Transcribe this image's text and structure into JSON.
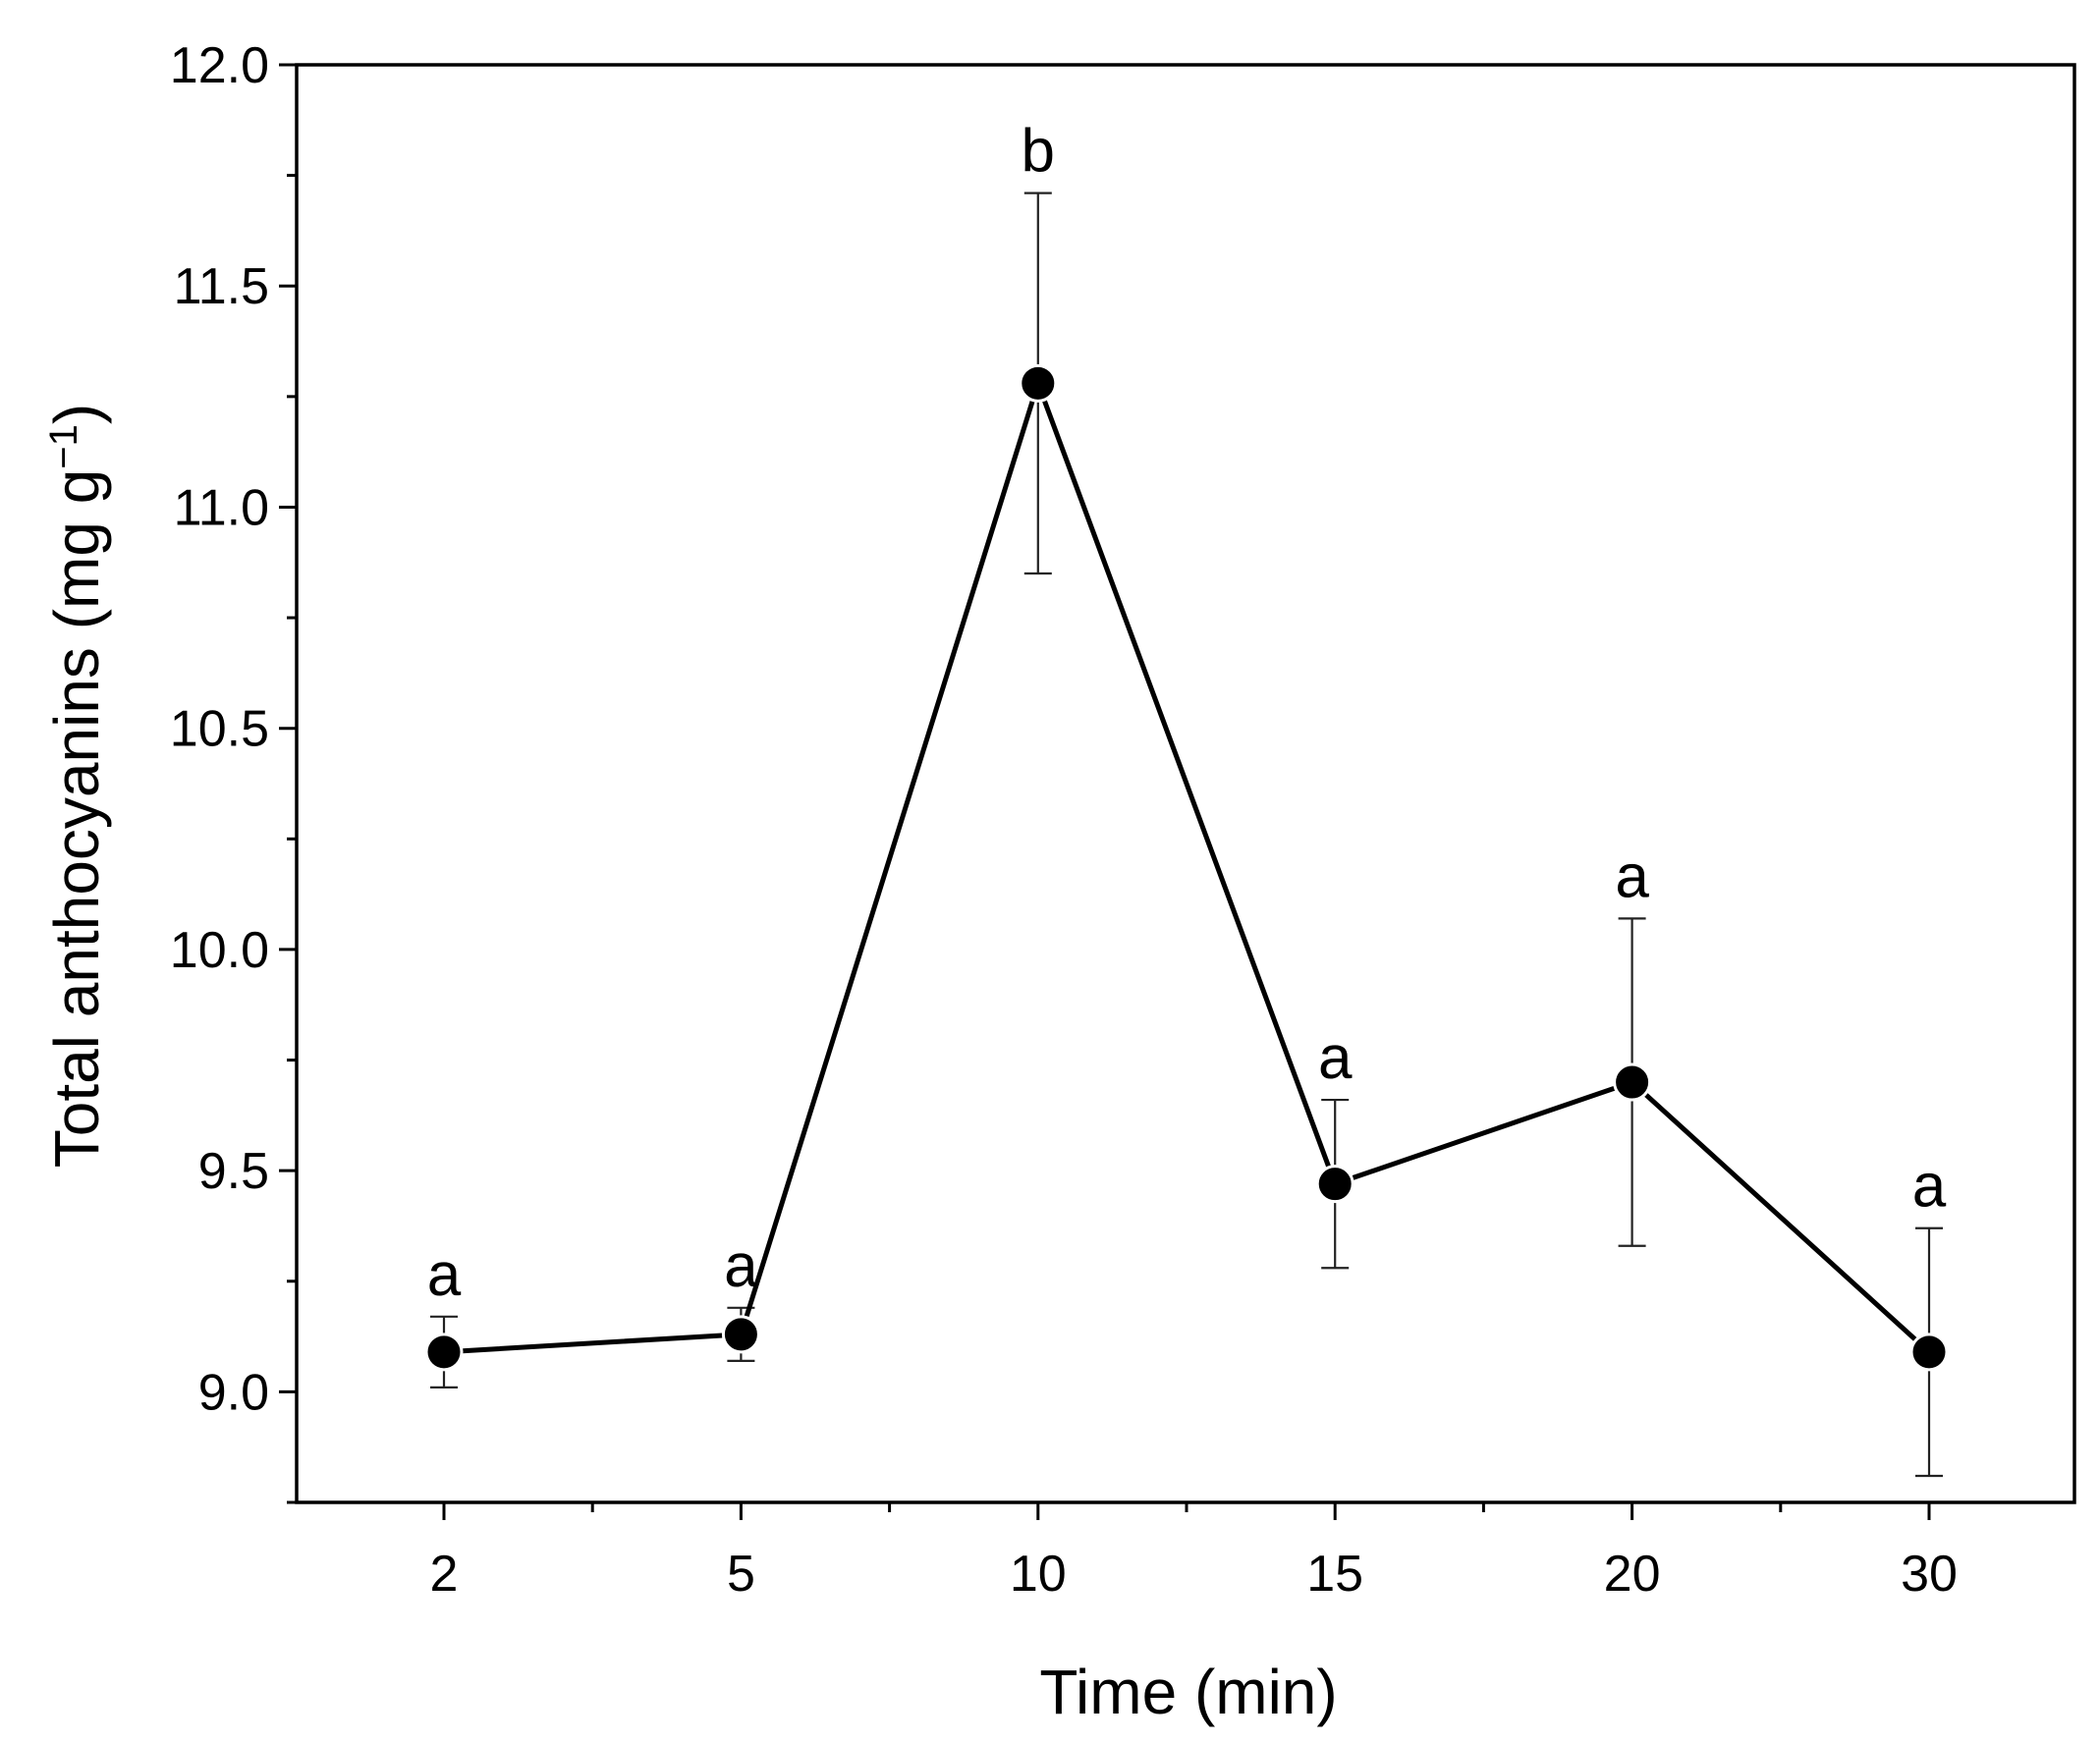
{
  "chart_data": {
    "type": "line",
    "title": "",
    "xlabel": "Time (min)",
    "ylabel": "Total anthocyanins (mg g⁻¹)",
    "ylabel_main": "Total anthocyanins (mg g",
    "ylabel_sup": "−1",
    "ylabel_close": ")",
    "ylim": [
      8.75,
      12.0
    ],
    "categories": [
      "2",
      "5",
      "10",
      "15",
      "20",
      "30"
    ],
    "yticks": [
      9.0,
      9.5,
      10.0,
      10.5,
      11.0,
      11.5,
      12.0
    ],
    "ytick_labels": [
      "9.0",
      "9.5",
      "10.0",
      "10.5",
      "11.0",
      "11.5",
      "12.0"
    ],
    "series": [
      {
        "name": "Total anthocyanins",
        "values": [
          9.09,
          9.13,
          11.28,
          9.47,
          9.7,
          9.09
        ],
        "error": [
          0.08,
          0.06,
          0.43,
          0.19,
          0.37,
          0.28
        ],
        "significance": [
          "a",
          "a",
          "b",
          "a",
          "a",
          "a"
        ],
        "color": "#000000"
      }
    ],
    "grid": false,
    "legend": "none"
  }
}
